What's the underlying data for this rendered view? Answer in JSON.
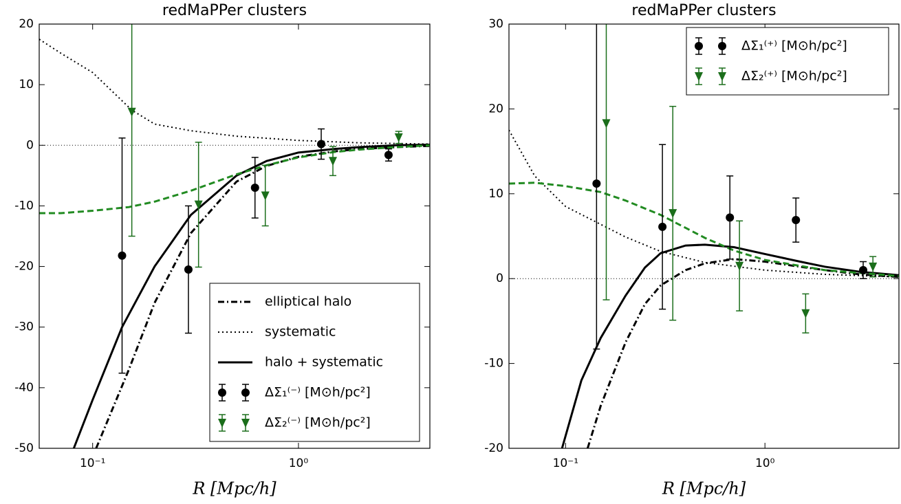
{
  "chart_data": [
    {
      "type": "line",
      "title": "redMaPPer clusters",
      "xlabel": "R [Mpc/h]",
      "xscale": "log",
      "xlim": [
        0.055,
        4.35
      ],
      "ylim": [
        -50,
        20
      ],
      "xticks": [
        {
          "value": 0.1,
          "label": "10⁻¹"
        },
        {
          "value": 1,
          "label": "10⁰"
        }
      ],
      "yticks": [
        -50,
        -40,
        -30,
        -20,
        -10,
        0,
        10,
        20
      ],
      "reference_line": 0,
      "legend": "lower right",
      "series": [
        {
          "name": "elliptical halo",
          "color": "#000000",
          "linestyle": "dashdot",
          "x": [
            0.104,
            0.15,
            0.2,
            0.3,
            0.5,
            0.7,
            1,
            1.5,
            2,
            3,
            4.35
          ],
          "values": [
            -50,
            -37,
            -26,
            -14.5,
            -6,
            -3.4,
            -1.9,
            -1.0,
            -0.6,
            -0.3,
            -0.1
          ]
        },
        {
          "name": "systematic",
          "color": "#000000",
          "linestyle": "dotted",
          "x": [
            0.055,
            0.07,
            0.1,
            0.155,
            0.2,
            0.3,
            0.5,
            1,
            2,
            4.35
          ],
          "values": [
            17.5,
            15.2,
            12.0,
            5.8,
            3.5,
            2.4,
            1.5,
            0.8,
            0.4,
            0.2
          ]
        },
        {
          "name": "halo + systematic",
          "color": "#000000",
          "linestyle": "solid",
          "x": [
            0.081,
            0.1,
            0.139,
            0.2,
            0.3,
            0.5,
            0.7,
            1,
            1.5,
            2,
            3,
            4.35
          ],
          "values": [
            -50,
            -42,
            -30,
            -20,
            -11.5,
            -5,
            -2.6,
            -1.2,
            -0.6,
            -0.3,
            0,
            0.1
          ]
        },
        {
          "color": "#228b22",
          "linestyle": "dashed",
          "x": [
            0.055,
            0.07,
            0.1,
            0.15,
            0.2,
            0.3,
            0.5,
            0.7,
            1,
            1.5,
            2,
            3,
            4.35
          ],
          "values": [
            -11.2,
            -11.2,
            -10.8,
            -10.2,
            -9.3,
            -7.5,
            -4.8,
            -3.3,
            -2,
            -1.1,
            -0.7,
            -0.3,
            0
          ]
        },
        {
          "name": "ΔΣ₁⁽⁻⁾  [M⊙h/pc²]",
          "color": "#000000",
          "marker": "circle",
          "x": [
            0.139,
            0.292,
            0.615,
            1.29,
            2.74
          ],
          "values": [
            -18.2,
            -20.5,
            -7,
            0.2,
            -1.6
          ],
          "errors": [
            19.4,
            10.5,
            5,
            2.5,
            1.0
          ]
        },
        {
          "name": "ΔΣ₂⁽⁻⁾  [M⊙h/pc²]",
          "color": "#1b6e1b",
          "marker": "triangle-down",
          "x": [
            0.155,
            0.327,
            0.69,
            1.47,
            3.07
          ],
          "values": [
            5.5,
            -9.8,
            -8.3,
            -2.6,
            1.3
          ],
          "errors": [
            20.5,
            10.3,
            5,
            2.4,
            1.0
          ]
        }
      ]
    },
    {
      "type": "line",
      "title": "redMaPPer clusters",
      "xlabel": "R [Mpc/h]",
      "xscale": "log",
      "xlim": [
        0.052,
        4.7
      ],
      "ylim": [
        -20,
        30
      ],
      "xticks": [
        {
          "value": 0.1,
          "label": "10⁻¹"
        },
        {
          "value": 1,
          "label": "10⁰"
        }
      ],
      "yticks": [
        -20,
        -10,
        0,
        10,
        20,
        30
      ],
      "reference_line": 0,
      "legend": "upper right",
      "series": [
        {
          "color": "#000000",
          "linestyle": "dashdot",
          "x": [
            0.129,
            0.15,
            0.2,
            0.25,
            0.3,
            0.4,
            0.5,
            0.7,
            1,
            1.5,
            2,
            3,
            4.7
          ],
          "values": [
            -20,
            -15,
            -7.5,
            -3,
            -0.8,
            1.0,
            1.8,
            2.3,
            2.0,
            1.4,
            1.0,
            0.5,
            0.2
          ]
        },
        {
          "color": "#000000",
          "linestyle": "dotted",
          "x": [
            0.052,
            0.07,
            0.1,
            0.2,
            0.3,
            0.5,
            1,
            2,
            4.7
          ],
          "values": [
            17.5,
            12.1,
            8.5,
            4.9,
            3.2,
            1.9,
            1.0,
            0.5,
            0.2
          ]
        },
        {
          "color": "#000000",
          "linestyle": "solid",
          "x": [
            0.096,
            0.12,
            0.15,
            0.2,
            0.25,
            0.3,
            0.4,
            0.5,
            0.7,
            1,
            1.5,
            2,
            3,
            4.7
          ],
          "values": [
            -20,
            -12,
            -7,
            -2,
            1.3,
            3.0,
            3.9,
            4.0,
            3.7,
            2.9,
            2.0,
            1.4,
            0.8,
            0.4
          ]
        },
        {
          "color": "#228b22",
          "linestyle": "dashed",
          "x": [
            0.052,
            0.07,
            0.1,
            0.15,
            0.2,
            0.3,
            0.5,
            0.7,
            1,
            2,
            4.7
          ],
          "values": [
            11.2,
            11.3,
            10.9,
            10.2,
            9.2,
            7.5,
            4.8,
            3.3,
            2.2,
            1.0,
            0.3
          ]
        },
        {
          "name": "ΔΣ₁⁽⁺⁾  [M⊙h/pc²]",
          "color": "#000000",
          "marker": "circle",
          "x": [
            0.143,
            0.306,
            0.667,
            1.43,
            3.11
          ],
          "values": [
            11.2,
            6.1,
            7.2,
            6.9,
            1.0
          ],
          "errors": [
            19.5,
            9.7,
            4.9,
            2.6,
            1.0
          ]
        },
        {
          "name": "ΔΣ₂⁽⁺⁾  [M⊙h/pc²]",
          "color": "#1b6e1b",
          "marker": "triangle-down",
          "x": [
            0.16,
            0.345,
            0.745,
            1.6,
            3.48
          ],
          "values": [
            18.3,
            7.7,
            1.5,
            -4.1,
            1.4
          ],
          "errors": [
            20.8,
            12.6,
            5.3,
            2.3,
            1.2
          ]
        }
      ]
    }
  ]
}
